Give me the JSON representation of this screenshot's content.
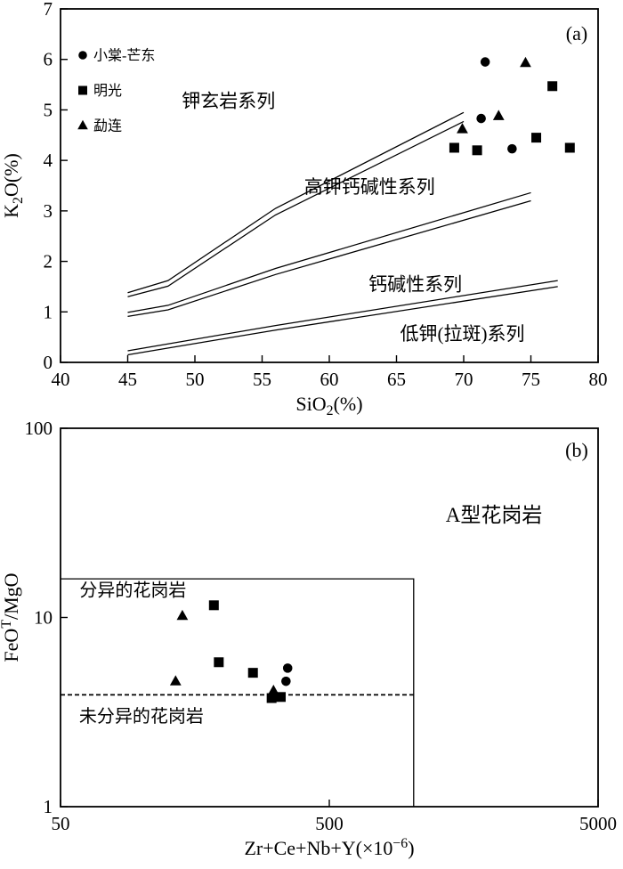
{
  "figure": {
    "background": "#ffffff",
    "ink": "#000000"
  },
  "legend": {
    "items": [
      {
        "label": "小棠-芒东",
        "marker": "circle"
      },
      {
        "label": "明光",
        "marker": "square"
      },
      {
        "label": "勐连",
        "marker": "triangle"
      }
    ]
  },
  "chart_data": [
    {
      "id": "a",
      "type": "scatter",
      "panel_label": "(a)",
      "xscale": "linear",
      "yscale": "linear",
      "xlabel": "SiO2(%)",
      "ylabel": "K2O(%)",
      "xlabel_parts": [
        {
          "t": "SiO"
        },
        {
          "t": "2",
          "sub": true
        },
        {
          "t": "(%)"
        }
      ],
      "ylabel_parts": [
        {
          "t": "K"
        },
        {
          "t": "2",
          "sub": true
        },
        {
          "t": "O(%)"
        }
      ],
      "xlim": [
        40,
        80
      ],
      "ylim": [
        0,
        7
      ],
      "xticks": [
        40,
        45,
        50,
        55,
        60,
        65,
        70,
        75,
        80
      ],
      "yticks": [
        0,
        1,
        2,
        3,
        4,
        5,
        6,
        7
      ],
      "grid": false,
      "legend_position": "inside top-left",
      "series": [
        {
          "name": "小棠-芒东",
          "marker": "circle",
          "points": [
            [
              71.6,
              5.95
            ],
            [
              71.3,
              4.83
            ],
            [
              73.6,
              4.23
            ]
          ]
        },
        {
          "name": "明光",
          "marker": "square",
          "points": [
            [
              69.3,
              4.25
            ],
            [
              71.0,
              4.2
            ],
            [
              75.4,
              4.45
            ],
            [
              76.6,
              5.47
            ],
            [
              77.9,
              4.25
            ]
          ]
        },
        {
          "name": "勐连",
          "marker": "triangle",
          "points": [
            [
              69.9,
              4.62
            ],
            [
              72.6,
              4.88
            ],
            [
              74.6,
              5.93
            ]
          ]
        }
      ],
      "boundary_lines": [
        {
          "name": "shoshonite-upper",
          "points": [
            [
              45,
              1.38
            ],
            [
              48,
              1.62
            ],
            [
              56,
              3.05
            ],
            [
              70,
              4.95
            ]
          ]
        },
        {
          "name": "shoshonite-lower",
          "points": [
            [
              45,
              1.3
            ],
            [
              48,
              1.51
            ],
            [
              56,
              2.92
            ],
            [
              70,
              4.77
            ]
          ]
        },
        {
          "name": "high-k-upper",
          "points": [
            [
              45,
              0.99
            ],
            [
              48,
              1.13
            ],
            [
              56,
              1.86
            ],
            [
              75,
              3.36
            ]
          ]
        },
        {
          "name": "high-k-lower",
          "points": [
            [
              45,
              0.91
            ],
            [
              48,
              1.04
            ],
            [
              56,
              1.74
            ],
            [
              75,
              3.2
            ]
          ]
        },
        {
          "name": "calc-alkaline-upper",
          "points": [
            [
              45,
              0.23
            ],
            [
              56,
              0.73
            ],
            [
              77,
              1.62
            ]
          ]
        },
        {
          "name": "calc-alkaline-lower",
          "points": [
            [
              45,
              0.15
            ],
            [
              56,
              0.64
            ],
            [
              77,
              1.5
            ]
          ]
        }
      ],
      "field_labels": [
        {
          "text": "钾玄岩系列",
          "x": 52.5,
          "y": 5.05,
          "size": 21
        },
        {
          "text": "高钾钙碱性系列",
          "x": 63.0,
          "y": 3.35,
          "size": 21
        },
        {
          "text": "钙碱性系列",
          "x": 66.4,
          "y": 1.42,
          "size": 21
        },
        {
          "text": "低钾(拉斑)系列",
          "x": 69.9,
          "y": 0.44,
          "size": 21
        }
      ]
    },
    {
      "id": "b",
      "type": "scatter",
      "panel_label": "(b)",
      "xscale": "log",
      "yscale": "log",
      "xlabel": "Zr+Ce+Nb+Y(×10-6)",
      "ylabel": "FeOT/MgO",
      "xlabel_parts": [
        {
          "t": "Zr+Ce+Nb+Y(×10"
        },
        {
          "t": "−6",
          "sup": true
        },
        {
          "t": ")"
        }
      ],
      "ylabel_parts": [
        {
          "t": "FeO"
        },
        {
          "t": "T",
          "sup": true
        },
        {
          "t": "/MgO"
        }
      ],
      "xlim": [
        50,
        5000
      ],
      "ylim": [
        1,
        100
      ],
      "xticks": [
        50,
        500,
        5000
      ],
      "yticks": [
        1,
        10,
        100
      ],
      "grid": false,
      "series": [
        {
          "name": "小棠-芒东",
          "marker": "circle",
          "points": [
            [
              350,
              5.4
            ],
            [
              345,
              4.6
            ]
          ]
        },
        {
          "name": "明光",
          "marker": "square",
          "points": [
            [
              186,
              11.6
            ],
            [
              194,
              5.8
            ],
            [
              260,
              5.1
            ],
            [
              305,
              3.75
            ],
            [
              330,
              3.8
            ]
          ]
        },
        {
          "name": "勐连",
          "marker": "triangle",
          "points": [
            [
              142,
              10.2
            ],
            [
              134,
              4.6
            ],
            [
              310,
              4.1
            ]
          ]
        }
      ],
      "reference_shapes": [
        {
          "name": "fractionated-field-box",
          "style": "solid",
          "points": [
            [
              50,
              16
            ],
            [
              1030,
              16
            ],
            [
              1030,
              1
            ]
          ]
        },
        {
          "name": "fractionation-divide-line",
          "style": "dashed",
          "points": [
            [
              50,
              3.9
            ],
            [
              1030,
              3.9
            ]
          ]
        }
      ],
      "field_labels": [
        {
          "text": "A型花岗岩",
          "x": 2050,
          "y": 32,
          "size": 23
        },
        {
          "text": "分异的花岗岩",
          "x": 93,
          "y": 13,
          "size": 20
        },
        {
          "text": "未分异的花岗岩",
          "x": 100,
          "y": 2.8,
          "size": 20
        }
      ]
    }
  ]
}
